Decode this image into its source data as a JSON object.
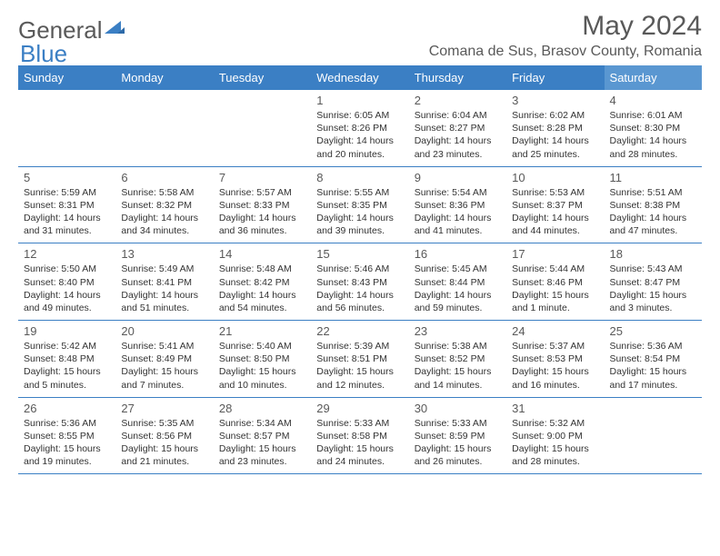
{
  "logo": {
    "general": "General",
    "blue": "Blue"
  },
  "title": "May 2024",
  "location": "Comana de Sus, Brasov County, Romania",
  "headers": {
    "bg": "#3b7fc4",
    "sat_bg": "#5a97d1",
    "fg": "#ffffff",
    "fontsize": 13,
    "days": [
      "Sunday",
      "Monday",
      "Tuesday",
      "Wednesday",
      "Thursday",
      "Friday",
      "Saturday"
    ]
  },
  "cell_style": {
    "daynum_color": "#595959",
    "info_color": "#333333",
    "info_fontsize": 10.5,
    "border_color": "#3b7fc4"
  },
  "weeks": [
    [
      {
        "n": "",
        "sr": "",
        "ss": "",
        "dl": ""
      },
      {
        "n": "",
        "sr": "",
        "ss": "",
        "dl": ""
      },
      {
        "n": "",
        "sr": "",
        "ss": "",
        "dl": ""
      },
      {
        "n": "1",
        "sr": "Sunrise: 6:05 AM",
        "ss": "Sunset: 8:26 PM",
        "dl": "Daylight: 14 hours and 20 minutes."
      },
      {
        "n": "2",
        "sr": "Sunrise: 6:04 AM",
        "ss": "Sunset: 8:27 PM",
        "dl": "Daylight: 14 hours and 23 minutes."
      },
      {
        "n": "3",
        "sr": "Sunrise: 6:02 AM",
        "ss": "Sunset: 8:28 PM",
        "dl": "Daylight: 14 hours and 25 minutes."
      },
      {
        "n": "4",
        "sr": "Sunrise: 6:01 AM",
        "ss": "Sunset: 8:30 PM",
        "dl": "Daylight: 14 hours and 28 minutes."
      }
    ],
    [
      {
        "n": "5",
        "sr": "Sunrise: 5:59 AM",
        "ss": "Sunset: 8:31 PM",
        "dl": "Daylight: 14 hours and 31 minutes."
      },
      {
        "n": "6",
        "sr": "Sunrise: 5:58 AM",
        "ss": "Sunset: 8:32 PM",
        "dl": "Daylight: 14 hours and 34 minutes."
      },
      {
        "n": "7",
        "sr": "Sunrise: 5:57 AM",
        "ss": "Sunset: 8:33 PM",
        "dl": "Daylight: 14 hours and 36 minutes."
      },
      {
        "n": "8",
        "sr": "Sunrise: 5:55 AM",
        "ss": "Sunset: 8:35 PM",
        "dl": "Daylight: 14 hours and 39 minutes."
      },
      {
        "n": "9",
        "sr": "Sunrise: 5:54 AM",
        "ss": "Sunset: 8:36 PM",
        "dl": "Daylight: 14 hours and 41 minutes."
      },
      {
        "n": "10",
        "sr": "Sunrise: 5:53 AM",
        "ss": "Sunset: 8:37 PM",
        "dl": "Daylight: 14 hours and 44 minutes."
      },
      {
        "n": "11",
        "sr": "Sunrise: 5:51 AM",
        "ss": "Sunset: 8:38 PM",
        "dl": "Daylight: 14 hours and 47 minutes."
      }
    ],
    [
      {
        "n": "12",
        "sr": "Sunrise: 5:50 AM",
        "ss": "Sunset: 8:40 PM",
        "dl": "Daylight: 14 hours and 49 minutes."
      },
      {
        "n": "13",
        "sr": "Sunrise: 5:49 AM",
        "ss": "Sunset: 8:41 PM",
        "dl": "Daylight: 14 hours and 51 minutes."
      },
      {
        "n": "14",
        "sr": "Sunrise: 5:48 AM",
        "ss": "Sunset: 8:42 PM",
        "dl": "Daylight: 14 hours and 54 minutes."
      },
      {
        "n": "15",
        "sr": "Sunrise: 5:46 AM",
        "ss": "Sunset: 8:43 PM",
        "dl": "Daylight: 14 hours and 56 minutes."
      },
      {
        "n": "16",
        "sr": "Sunrise: 5:45 AM",
        "ss": "Sunset: 8:44 PM",
        "dl": "Daylight: 14 hours and 59 minutes."
      },
      {
        "n": "17",
        "sr": "Sunrise: 5:44 AM",
        "ss": "Sunset: 8:46 PM",
        "dl": "Daylight: 15 hours and 1 minute."
      },
      {
        "n": "18",
        "sr": "Sunrise: 5:43 AM",
        "ss": "Sunset: 8:47 PM",
        "dl": "Daylight: 15 hours and 3 minutes."
      }
    ],
    [
      {
        "n": "19",
        "sr": "Sunrise: 5:42 AM",
        "ss": "Sunset: 8:48 PM",
        "dl": "Daylight: 15 hours and 5 minutes."
      },
      {
        "n": "20",
        "sr": "Sunrise: 5:41 AM",
        "ss": "Sunset: 8:49 PM",
        "dl": "Daylight: 15 hours and 7 minutes."
      },
      {
        "n": "21",
        "sr": "Sunrise: 5:40 AM",
        "ss": "Sunset: 8:50 PM",
        "dl": "Daylight: 15 hours and 10 minutes."
      },
      {
        "n": "22",
        "sr": "Sunrise: 5:39 AM",
        "ss": "Sunset: 8:51 PM",
        "dl": "Daylight: 15 hours and 12 minutes."
      },
      {
        "n": "23",
        "sr": "Sunrise: 5:38 AM",
        "ss": "Sunset: 8:52 PM",
        "dl": "Daylight: 15 hours and 14 minutes."
      },
      {
        "n": "24",
        "sr": "Sunrise: 5:37 AM",
        "ss": "Sunset: 8:53 PM",
        "dl": "Daylight: 15 hours and 16 minutes."
      },
      {
        "n": "25",
        "sr": "Sunrise: 5:36 AM",
        "ss": "Sunset: 8:54 PM",
        "dl": "Daylight: 15 hours and 17 minutes."
      }
    ],
    [
      {
        "n": "26",
        "sr": "Sunrise: 5:36 AM",
        "ss": "Sunset: 8:55 PM",
        "dl": "Daylight: 15 hours and 19 minutes."
      },
      {
        "n": "27",
        "sr": "Sunrise: 5:35 AM",
        "ss": "Sunset: 8:56 PM",
        "dl": "Daylight: 15 hours and 21 minutes."
      },
      {
        "n": "28",
        "sr": "Sunrise: 5:34 AM",
        "ss": "Sunset: 8:57 PM",
        "dl": "Daylight: 15 hours and 23 minutes."
      },
      {
        "n": "29",
        "sr": "Sunrise: 5:33 AM",
        "ss": "Sunset: 8:58 PM",
        "dl": "Daylight: 15 hours and 24 minutes."
      },
      {
        "n": "30",
        "sr": "Sunrise: 5:33 AM",
        "ss": "Sunset: 8:59 PM",
        "dl": "Daylight: 15 hours and 26 minutes."
      },
      {
        "n": "31",
        "sr": "Sunrise: 5:32 AM",
        "ss": "Sunset: 9:00 PM",
        "dl": "Daylight: 15 hours and 28 minutes."
      },
      {
        "n": "",
        "sr": "",
        "ss": "",
        "dl": ""
      }
    ]
  ]
}
